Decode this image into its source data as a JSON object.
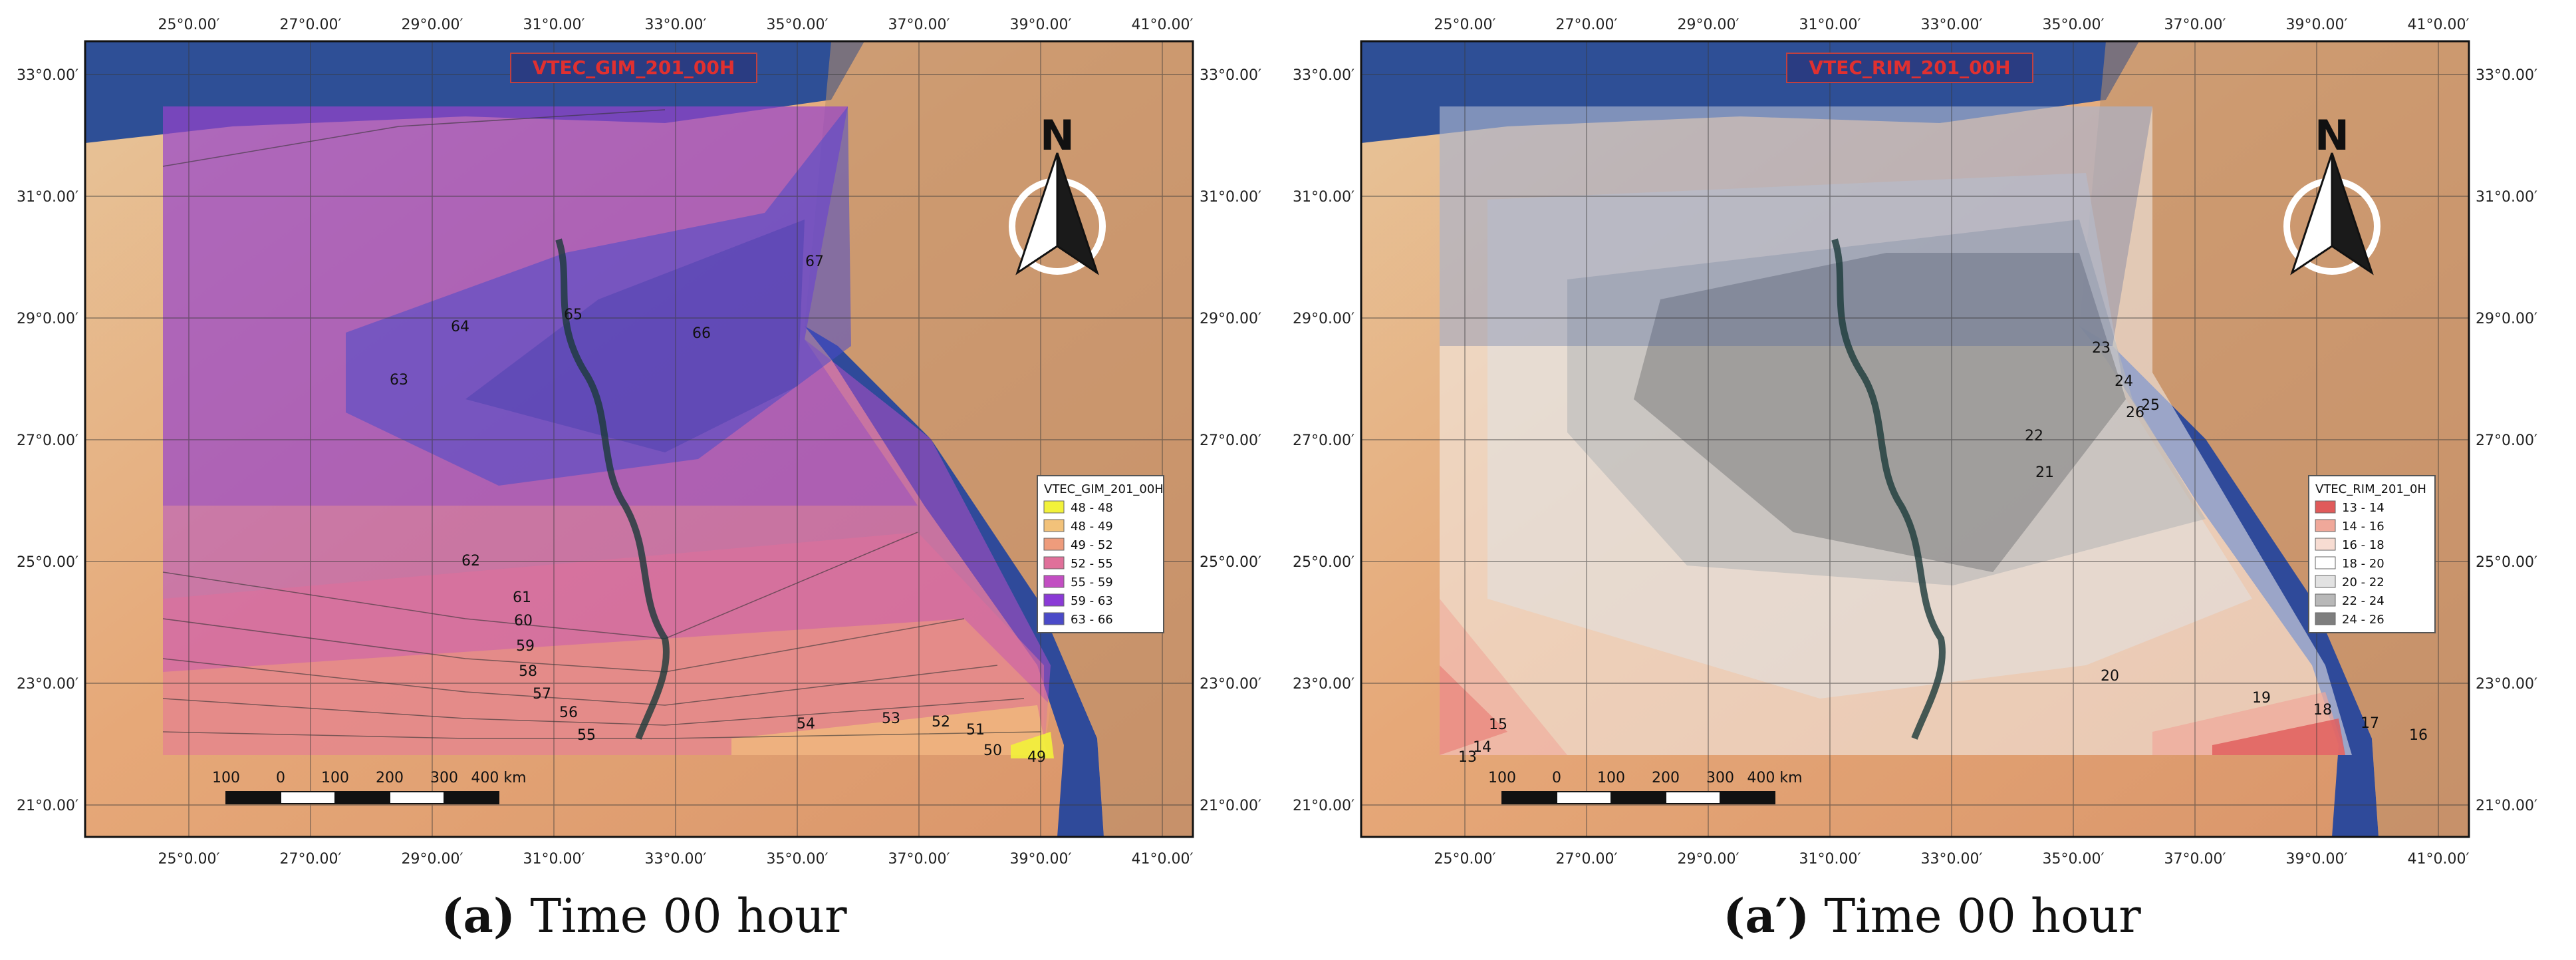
{
  "lon_ticks": [
    "25°0.00′",
    "27°0.00′",
    "29°0.00′",
    "31°0.00′",
    "33°0.00′",
    "35°0.00′",
    "37°0.00′",
    "39°0.00′",
    "41°0.00′"
  ],
  "lat_ticks": [
    "33°0.00′",
    "31°0.00′",
    "29°0.00′",
    "27°0.00′",
    "25°0.00′",
    "23°0.00′",
    "21°0.00′"
  ],
  "panels": [
    {
      "id": "gim",
      "map_title": "VTEC_GIM_201_00H",
      "legend_title": "VTEC_GIM_201_00H",
      "legend": [
        {
          "label": "48 - 48",
          "color": "#f2f23a"
        },
        {
          "label": "48 - 49",
          "color": "#f2c27a"
        },
        {
          "label": "49 - 52",
          "color": "#ee9c7c"
        },
        {
          "label": "52 - 55",
          "color": "#e0709a"
        },
        {
          "label": "55 - 59",
          "color": "#c24ec2"
        },
        {
          "label": "59 - 63",
          "color": "#8a3ad6"
        },
        {
          "label": "63 - 66",
          "color": "#4a4ac8"
        }
      ],
      "contour_labels": [
        "67",
        "65",
        "66",
        "64",
        "63",
        "62",
        "61",
        "60",
        "59",
        "58",
        "57",
        "56",
        "55",
        "54",
        "53",
        "52",
        "51",
        "50",
        "49"
      ],
      "scale": {
        "ticks": [
          "100",
          "0",
          "100",
          "200",
          "300",
          "400 km"
        ]
      },
      "caption_letter": "(a)",
      "caption_text": "Time 00 hour",
      "north": "N"
    },
    {
      "id": "rim",
      "map_title": "VTEC_RIM_201_00H",
      "legend_title": "VTEC_RIM_201_0H",
      "legend": [
        {
          "label": "13 - 14",
          "color": "#e05a5a"
        },
        {
          "label": "14 - 16",
          "color": "#f0a89a"
        },
        {
          "label": "16 - 18",
          "color": "#f7dcd2"
        },
        {
          "label": "18 - 20",
          "color": "#ffffff"
        },
        {
          "label": "20 - 22",
          "color": "#e2e2e2"
        },
        {
          "label": "22 - 24",
          "color": "#b8b8b8"
        },
        {
          "label": "24 - 26",
          "color": "#7e7e7e"
        }
      ],
      "contour_labels": [
        "23",
        "24",
        "25",
        "26",
        "22",
        "21",
        "20",
        "19",
        "18",
        "17",
        "16",
        "15",
        "14",
        "13"
      ],
      "scale": {
        "ticks": [
          "100",
          "0",
          "100",
          "200",
          "300",
          "400 km"
        ]
      },
      "caption_letter": "(a′)",
      "caption_text": "Time 00 hour",
      "north": "N"
    }
  ]
}
